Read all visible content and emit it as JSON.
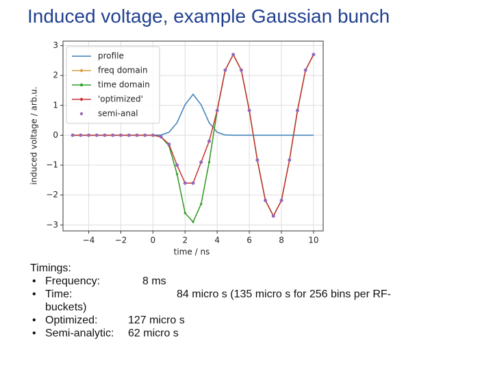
{
  "slide_title": "Induced voltage, example Gaussian bunch",
  "chart_data": {
    "type": "line",
    "xlabel": "time / ns",
    "ylabel": "induced voltage / arb.u.",
    "x": [
      -5,
      -4.5,
      -4,
      -3.5,
      -3,
      -2.5,
      -2,
      -1.5,
      -1,
      -0.5,
      0,
      0.5,
      1,
      1.5,
      2,
      2.5,
      3,
      3.5,
      4,
      4.5,
      5,
      5.5,
      6,
      6.5,
      7,
      7.5,
      8,
      8.5,
      9,
      9.5,
      10
    ],
    "series": [
      {
        "name": "profile",
        "color": "#3a7fb8",
        "style": "line",
        "values": [
          0,
          0,
          0,
          0,
          0,
          0,
          0,
          0,
          0,
          0,
          0,
          0.01,
          0.1,
          0.42,
          1.02,
          1.37,
          1.02,
          0.42,
          0.1,
          0.01,
          0,
          0,
          0,
          0,
          0,
          0,
          0,
          0,
          0,
          0,
          0
        ]
      },
      {
        "name": "freq domain",
        "color": "#d9a040",
        "style": "line-marker",
        "values": [
          0,
          0,
          0,
          0,
          0,
          0,
          0,
          0,
          0,
          0,
          0,
          -0.05,
          -0.35,
          -1.3,
          -2.6,
          -2.9,
          -2.3,
          -0.9,
          0.83,
          2.18,
          2.7,
          2.18,
          0.83,
          -0.83,
          -2.18,
          -2.7,
          -2.18,
          -0.83,
          0.83,
          2.18,
          2.7
        ]
      },
      {
        "name": "time domain",
        "color": "#2ca02c",
        "style": "line-marker",
        "values": [
          0,
          0,
          0,
          0,
          0,
          0,
          0,
          0,
          0,
          0,
          0,
          -0.05,
          -0.35,
          -1.3,
          -2.6,
          -2.9,
          -2.3,
          -0.9,
          0.83,
          2.18,
          2.7,
          2.18,
          0.83,
          -0.83,
          -2.18,
          -2.7,
          -2.18,
          -0.83,
          0.83,
          2.18,
          2.7
        ]
      },
      {
        "name": "'optimized'",
        "color": "#c83232",
        "style": "line-marker",
        "values": [
          0,
          0,
          0,
          0,
          0,
          0,
          0,
          0,
          0,
          0,
          0,
          -0.05,
          -0.3,
          -1.0,
          -1.6,
          -1.6,
          -0.9,
          -0.2,
          0.83,
          2.18,
          2.7,
          2.18,
          0.83,
          -0.83,
          -2.18,
          -2.7,
          -2.18,
          -0.83,
          0.83,
          2.18,
          2.7
        ]
      },
      {
        "name": "semi-anal",
        "color": "#9467bd",
        "style": "marker",
        "values": [
          0,
          0,
          0,
          0,
          0,
          0,
          0,
          0,
          0,
          0,
          0,
          -0.05,
          -0.3,
          -1.0,
          -1.6,
          -1.6,
          -0.9,
          -0.2,
          0.83,
          2.18,
          2.7,
          2.18,
          0.83,
          -0.83,
          -2.18,
          -2.7,
          -2.18,
          -0.83,
          0.83,
          2.18,
          2.7
        ]
      }
    ],
    "xlim": [
      -5.6,
      10.6
    ],
    "ylim": [
      -3.2,
      3.15
    ],
    "xticks": [
      {
        "value": -4,
        "label": "−4"
      },
      {
        "value": -2,
        "label": "−2"
      },
      0,
      2,
      4,
      6,
      8,
      10
    ],
    "yticks": [
      {
        "value": -3,
        "label": "−3"
      },
      {
        "value": -2,
        "label": "−2"
      },
      {
        "value": -1,
        "label": "−1"
      },
      0,
      1,
      2,
      3
    ],
    "grid": true,
    "legend": "upper-left"
  },
  "notes": {
    "heading": "Timings:",
    "items": [
      {
        "label": "Frequency:",
        "value": "8 ms"
      },
      {
        "label": "Time:",
        "value": "84 micro s (135 micro s for 256 bins per RF-buckets)"
      },
      {
        "label": "Optimized:",
        "value": "127 micro s"
      },
      {
        "label": "Semi-analytic:",
        "value": "62 micro s"
      }
    ]
  }
}
